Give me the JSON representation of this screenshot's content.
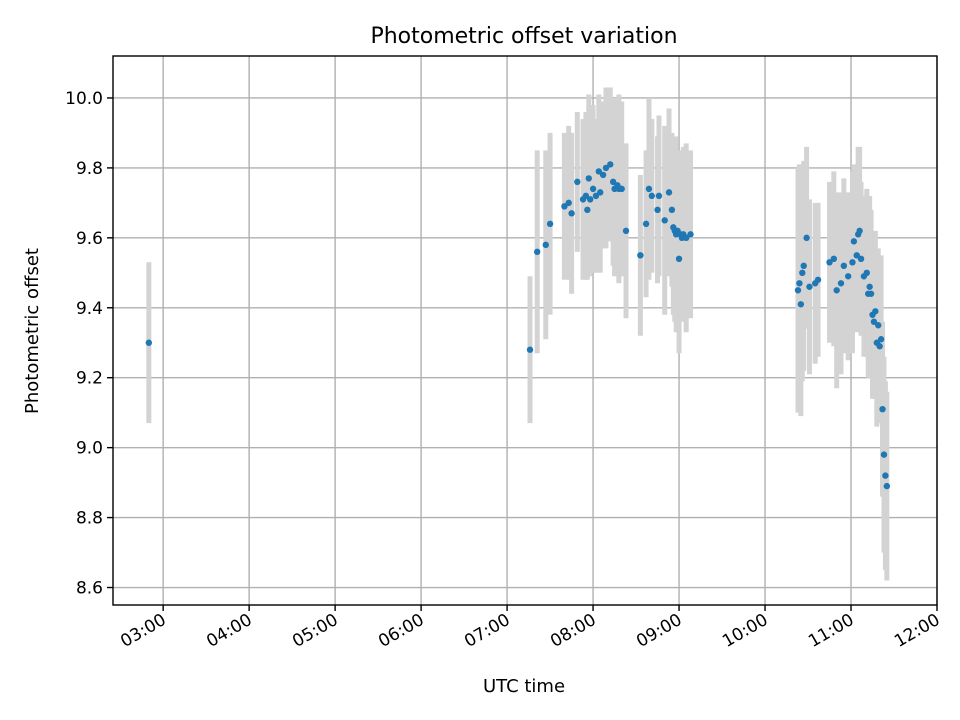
{
  "chart_data": {
    "type": "scatter",
    "title": "Photometric offset variation",
    "xlabel": "UTC time",
    "ylabel": "Photometric offset",
    "x_axis": "time",
    "xlim": [
      "02:25",
      "12:00"
    ],
    "ylim": [
      8.55,
      10.12
    ],
    "x_ticks": [
      "03:00",
      "04:00",
      "05:00",
      "06:00",
      "07:00",
      "08:00",
      "09:00",
      "10:00",
      "11:00",
      "12:00"
    ],
    "y_ticks": [
      "8.6",
      "8.8",
      "9.0",
      "9.2",
      "9.4",
      "9.6",
      "9.8",
      "10.0"
    ],
    "grid": true,
    "colors": {
      "points": "#1f77b4",
      "error_bars": "#d3d3d3",
      "grid": "#b0b0b0"
    },
    "series": [
      {
        "x": [
          "02:50",
          "07:16",
          "07:21",
          "07:27",
          "07:30",
          "07:40",
          "07:43",
          "07:45",
          "07:49",
          "07:53",
          "07:55",
          "07:56",
          "07:57",
          "07:58",
          "08:00",
          "08:02",
          "08:04",
          "08:05",
          "08:07",
          "08:09",
          "08:12",
          "08:14",
          "08:15",
          "08:17",
          "08:18",
          "08:20",
          "08:23",
          "08:33",
          "08:37",
          "08:39",
          "08:41",
          "08:45",
          "08:46",
          "08:50",
          "08:53",
          "08:55",
          "08:56",
          "08:57",
          "08:58",
          "08:59",
          "09:00",
          "09:01",
          "09:02",
          "09:03",
          "09:05",
          "09:08",
          "10:23",
          "10:24",
          "10:25",
          "10:26",
          "10:27",
          "10:29",
          "10:31",
          "10:35",
          "10:37",
          "10:45",
          "10:48",
          "10:50",
          "10:53",
          "10:55",
          "10:58",
          "11:01",
          "11:02",
          "11:04",
          "11:05",
          "11:06",
          "11:07",
          "11:09",
          "11:11",
          "11:12",
          "11:13",
          "11:14",
          "11:15",
          "11:16",
          "11:17",
          "11:18",
          "11:19",
          "11:20",
          "11:21",
          "11:22",
          "11:23",
          "11:24",
          "11:25"
        ],
        "y": [
          9.3,
          9.28,
          9.56,
          9.58,
          9.64,
          9.69,
          9.7,
          9.67,
          9.76,
          9.71,
          9.72,
          9.68,
          9.77,
          9.71,
          9.74,
          9.72,
          9.79,
          9.73,
          9.78,
          9.8,
          9.81,
          9.76,
          9.74,
          9.75,
          9.74,
          9.74,
          9.62,
          9.55,
          9.64,
          9.74,
          9.72,
          9.68,
          9.72,
          9.65,
          9.73,
          9.68,
          9.63,
          9.62,
          9.61,
          9.62,
          9.54,
          9.61,
          9.6,
          9.61,
          9.6,
          9.61,
          9.45,
          9.47,
          9.41,
          9.5,
          9.52,
          9.6,
          9.46,
          9.47,
          9.48,
          9.53,
          9.54,
          9.45,
          9.47,
          9.52,
          9.49,
          9.53,
          9.59,
          9.55,
          9.61,
          9.62,
          9.54,
          9.49,
          9.5,
          9.44,
          9.46,
          9.44,
          9.38,
          9.36,
          9.39,
          9.3,
          9.35,
          9.29,
          9.31,
          9.11,
          8.98,
          8.92,
          8.89
        ],
        "yerr": [
          0.23,
          0.21,
          0.29,
          0.27,
          0.26,
          0.21,
          0.22,
          0.23,
          0.2,
          0.23,
          0.24,
          0.2,
          0.24,
          0.22,
          0.24,
          0.22,
          0.22,
          0.23,
          0.21,
          0.23,
          0.22,
          0.24,
          0.25,
          0.25,
          0.27,
          0.25,
          0.25,
          0.23,
          0.21,
          0.26,
          0.22,
          0.21,
          0.23,
          0.27,
          0.24,
          0.22,
          0.25,
          0.26,
          0.28,
          0.23,
          0.27,
          0.24,
          0.23,
          0.25,
          0.27,
          0.24,
          0.35,
          0.34,
          0.32,
          0.31,
          0.3,
          0.26,
          0.25,
          0.23,
          0.22,
          0.23,
          0.25,
          0.28,
          0.26,
          0.25,
          0.24,
          0.26,
          0.22,
          0.22,
          0.25,
          0.24,
          0.22,
          0.23,
          0.24,
          0.24,
          0.26,
          0.24,
          0.24,
          0.22,
          0.23,
          0.24,
          0.22,
          0.22,
          0.24,
          0.25,
          0.28,
          0.27,
          0.27
        ]
      }
    ]
  }
}
